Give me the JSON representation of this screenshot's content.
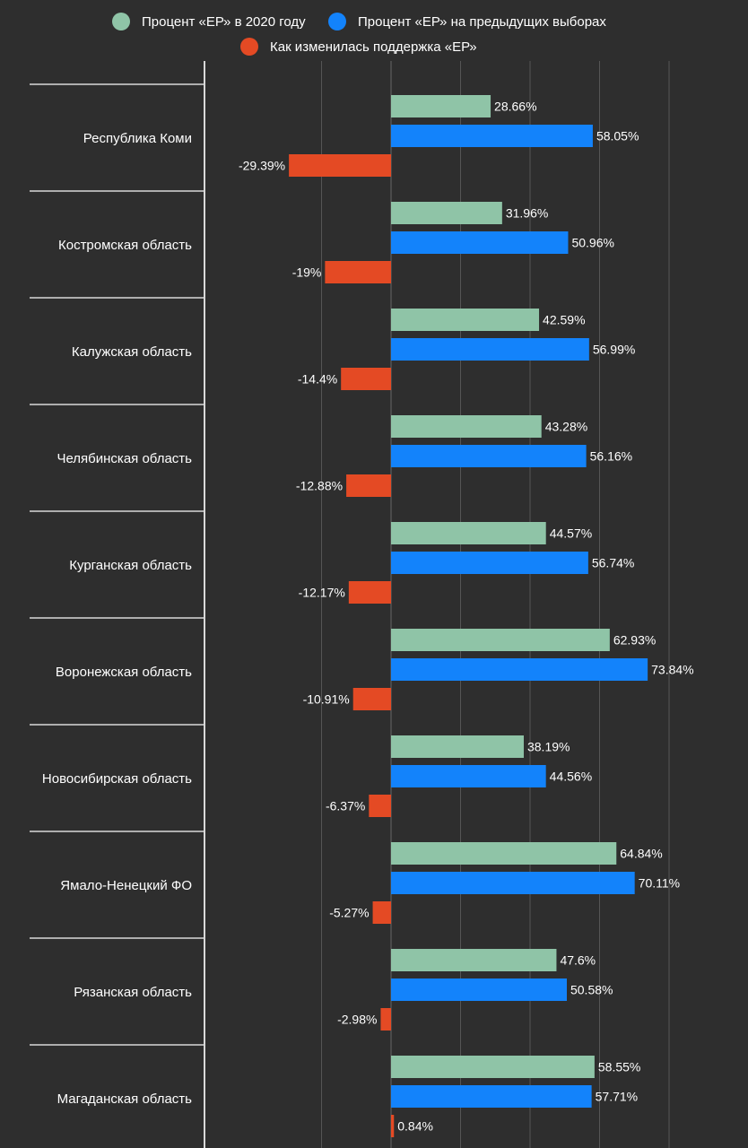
{
  "chart_data": {
    "type": "bar",
    "orientation": "horizontal",
    "title": "",
    "xlabel": "",
    "ylabel": "",
    "xlim": [
      -40,
      80
    ],
    "grid": true,
    "legend_position": "top",
    "value_suffix": "%",
    "categories": [
      "Республика Коми",
      "Костромская область",
      "Калужская область",
      "Челябинская область",
      "Курганская область",
      "Воронежская область",
      "Новосибирская область",
      "Ямало-Ненецкий ФО",
      "Рязанская область",
      "Магаданская область"
    ],
    "series": [
      {
        "name": "Процент «ЕР» в 2020 году",
        "color": "#8fc4a7",
        "values": [
          28.66,
          31.96,
          42.59,
          43.28,
          44.57,
          62.93,
          38.19,
          64.84,
          47.6,
          58.55
        ],
        "labels": [
          "28.66%",
          "31.96%",
          "42.59%",
          "43.28%",
          "44.57%",
          "62.93%",
          "38.19%",
          "64.84%",
          "47.6%",
          "58.55%"
        ]
      },
      {
        "name": "Процент «ЕР» на предыдущих выборах",
        "color": "#1383fb",
        "values": [
          58.05,
          50.96,
          56.99,
          56.16,
          56.74,
          73.84,
          44.56,
          70.11,
          50.58,
          57.71
        ],
        "labels": [
          "58.05%",
          "50.96%",
          "56.99%",
          "56.16%",
          "56.74%",
          "73.84%",
          "44.56%",
          "70.11%",
          "50.58%",
          "57.71%"
        ]
      },
      {
        "name": "Как изменилась поддержка «ЕР»",
        "color": "#e44a24",
        "values": [
          -29.39,
          -19,
          -14.4,
          -12.88,
          -12.17,
          -10.91,
          -6.37,
          -5.27,
          -2.98,
          0.84
        ],
        "labels": [
          "-29.39%",
          "-19%",
          "-14.4%",
          "-12.88%",
          "-12.17%",
          "-10.91%",
          "-6.37%",
          "-5.27%",
          "-2.98%",
          "0.84%"
        ]
      }
    ]
  }
}
